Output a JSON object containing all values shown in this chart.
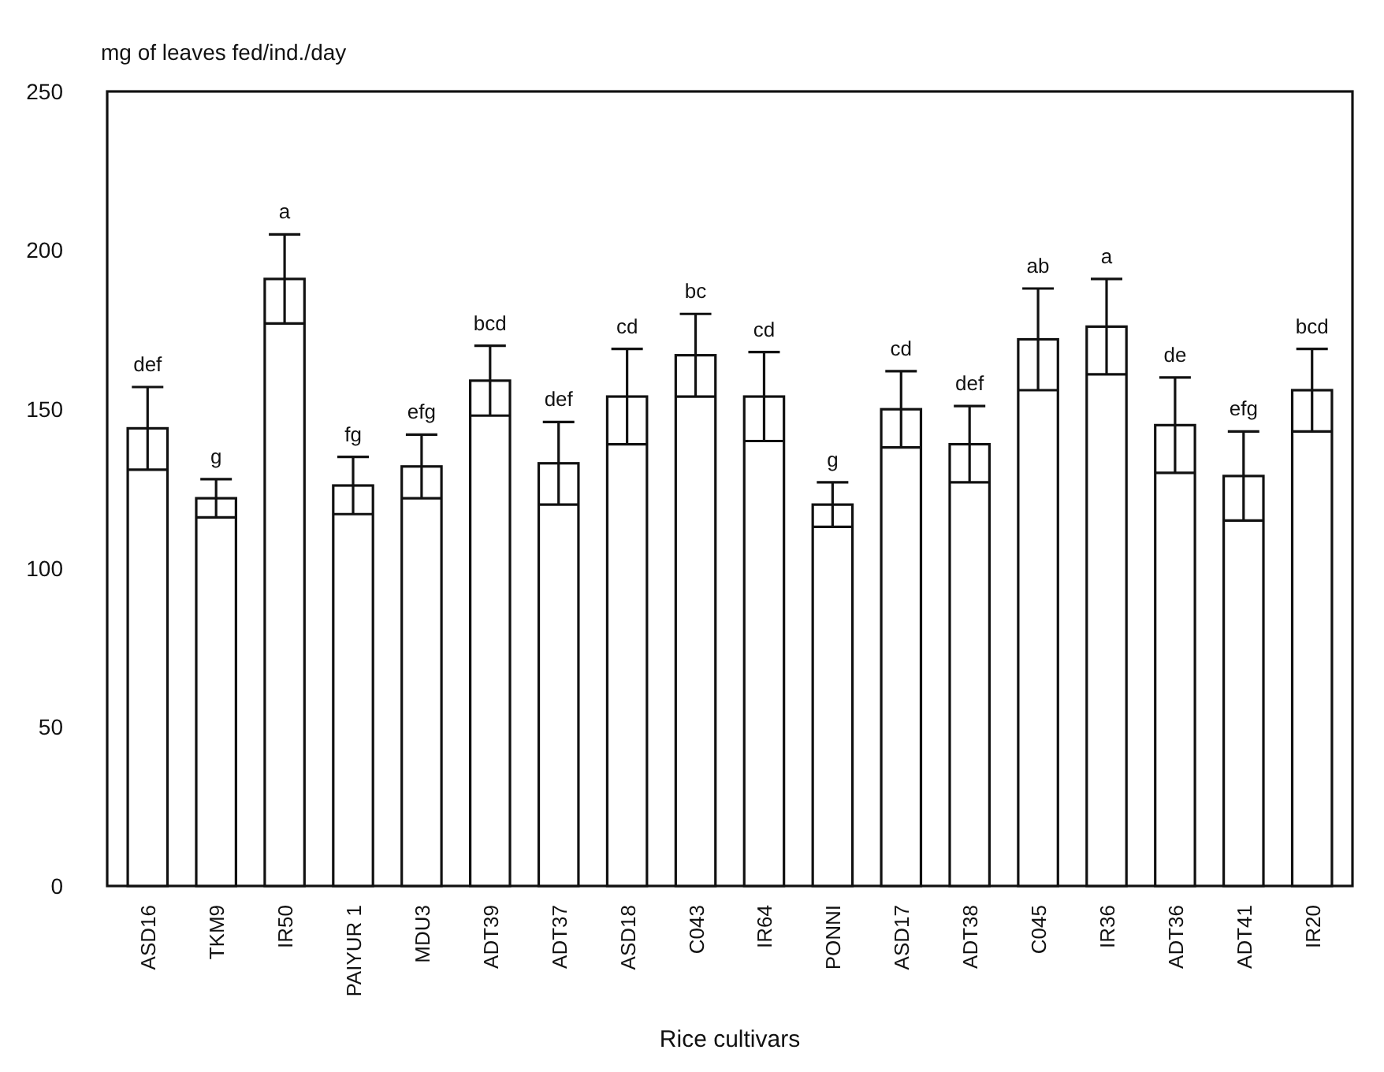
{
  "chart_data": {
    "type": "bar",
    "ylabel": "mg of leaves fed/ind./day",
    "xlabel": "Rice cultivars",
    "categories": [
      "ASD16",
      "TKM9",
      "IR50",
      "PAIYUR 1",
      "MDU3",
      "ADT39",
      "ADT37",
      "ASD18",
      "C043",
      "IR64",
      "PONNI",
      "ASD17",
      "ADT38",
      "C045",
      "IR36",
      "ADT36",
      "ADT41",
      "IR20"
    ],
    "values": [
      144,
      122,
      191,
      126,
      132,
      159,
      133,
      154,
      167,
      154,
      120,
      150,
      139,
      172,
      176,
      145,
      129,
      156
    ],
    "errors": [
      13,
      6,
      14,
      9,
      10,
      11,
      13,
      15,
      13,
      14,
      7,
      12,
      12,
      16,
      15,
      15,
      14,
      13
    ],
    "color": "#ffffff",
    "ylim": [
      0,
      250
    ],
    "yticks": [
      0,
      50,
      100,
      150,
      200,
      250
    ],
    "grid": false,
    "annotations": [
      {
        "text": "def",
        "x": "ASD16",
        "y": 157
      },
      {
        "text": "g",
        "x": "TKM9",
        "y": 128
      },
      {
        "text": "a",
        "x": "IR50",
        "y": 205
      },
      {
        "text": "fg",
        "x": "PAIYUR 1",
        "y": 135
      },
      {
        "text": "efg",
        "x": "MDU3",
        "y": 142
      },
      {
        "text": "bcd",
        "x": "ADT39",
        "y": 170
      },
      {
        "text": "def",
        "x": "ADT37",
        "y": 146
      },
      {
        "text": "cd",
        "x": "ASD18",
        "y": 169
      },
      {
        "text": "bc",
        "x": "C043",
        "y": 180
      },
      {
        "text": "cd",
        "x": "IR64",
        "y": 168
      },
      {
        "text": "g",
        "x": "PONNI",
        "y": 127
      },
      {
        "text": "cd",
        "x": "ASD17",
        "y": 162
      },
      {
        "text": "def",
        "x": "ADT38",
        "y": 151
      },
      {
        "text": "ab",
        "x": "C045",
        "y": 188
      },
      {
        "text": "a",
        "x": "IR36",
        "y": 191
      },
      {
        "text": "de",
        "x": "ADT36",
        "y": 160
      },
      {
        "text": "efg",
        "x": "ADT41",
        "y": 143
      },
      {
        "text": "bcd",
        "x": "IR20",
        "y": 169
      }
    ]
  }
}
